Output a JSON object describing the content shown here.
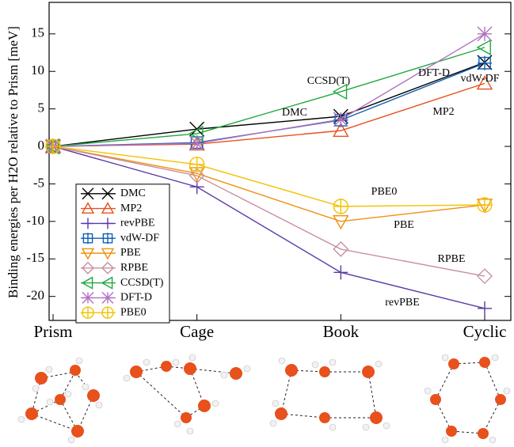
{
  "chart_data": {
    "type": "line",
    "ylabel": "Binding energies per H2O relative to Prism [meV]",
    "categories": [
      "Prism",
      "Cage",
      "Book",
      "Cyclic"
    ],
    "ylim": [
      -23.2,
      19.2
    ],
    "yticks": [
      -20,
      -15,
      -10,
      -5,
      0,
      5,
      10,
      15
    ],
    "legend": "lower left",
    "series": [
      {
        "name": "DMC",
        "color": "#000000",
        "marker": "x",
        "values": [
          0,
          2.3,
          4.0,
          11.2
        ]
      },
      {
        "name": "MP2",
        "color": "#e8501e",
        "marker": "triangle-up",
        "values": [
          0,
          0.3,
          2.1,
          8.4
        ]
      },
      {
        "name": "revPBE",
        "color": "#5a3aa8",
        "marker": "plus",
        "values": [
          0,
          -5.4,
          -16.8,
          -21.6
        ]
      },
      {
        "name": "vdW-DF",
        "color": "#1060b0",
        "marker": "square-plus",
        "values": [
          0,
          0.5,
          3.5,
          11.1
        ]
      },
      {
        "name": "PBE",
        "color": "#f09010",
        "marker": "triangle-down",
        "values": [
          0,
          -3.6,
          -10.0,
          -7.8
        ]
      },
      {
        "name": "RPBE",
        "color": "#c890a0",
        "marker": "diamond",
        "values": [
          0,
          -3.9,
          -13.7,
          -17.3
        ]
      },
      {
        "name": "CCSD(T)",
        "color": "#20a840",
        "marker": "triangle-left",
        "values": [
          0,
          1.7,
          7.3,
          13.2
        ]
      },
      {
        "name": "DFT-D",
        "color": "#b070c0",
        "marker": "asterisk",
        "values": [
          0,
          0.4,
          3.6,
          15.0
        ]
      },
      {
        "name": "PBE0",
        "color": "#f2c200",
        "marker": "circle-plus",
        "values": [
          0,
          -2.4,
          -8.0,
          -7.8
        ]
      }
    ],
    "annotations": [
      "CCSD(T)",
      "DMC",
      "DFT-D",
      "vdW-DF",
      "MP2",
      "PBE0",
      "PBE",
      "RPBE",
      "revPBE"
    ]
  }
}
